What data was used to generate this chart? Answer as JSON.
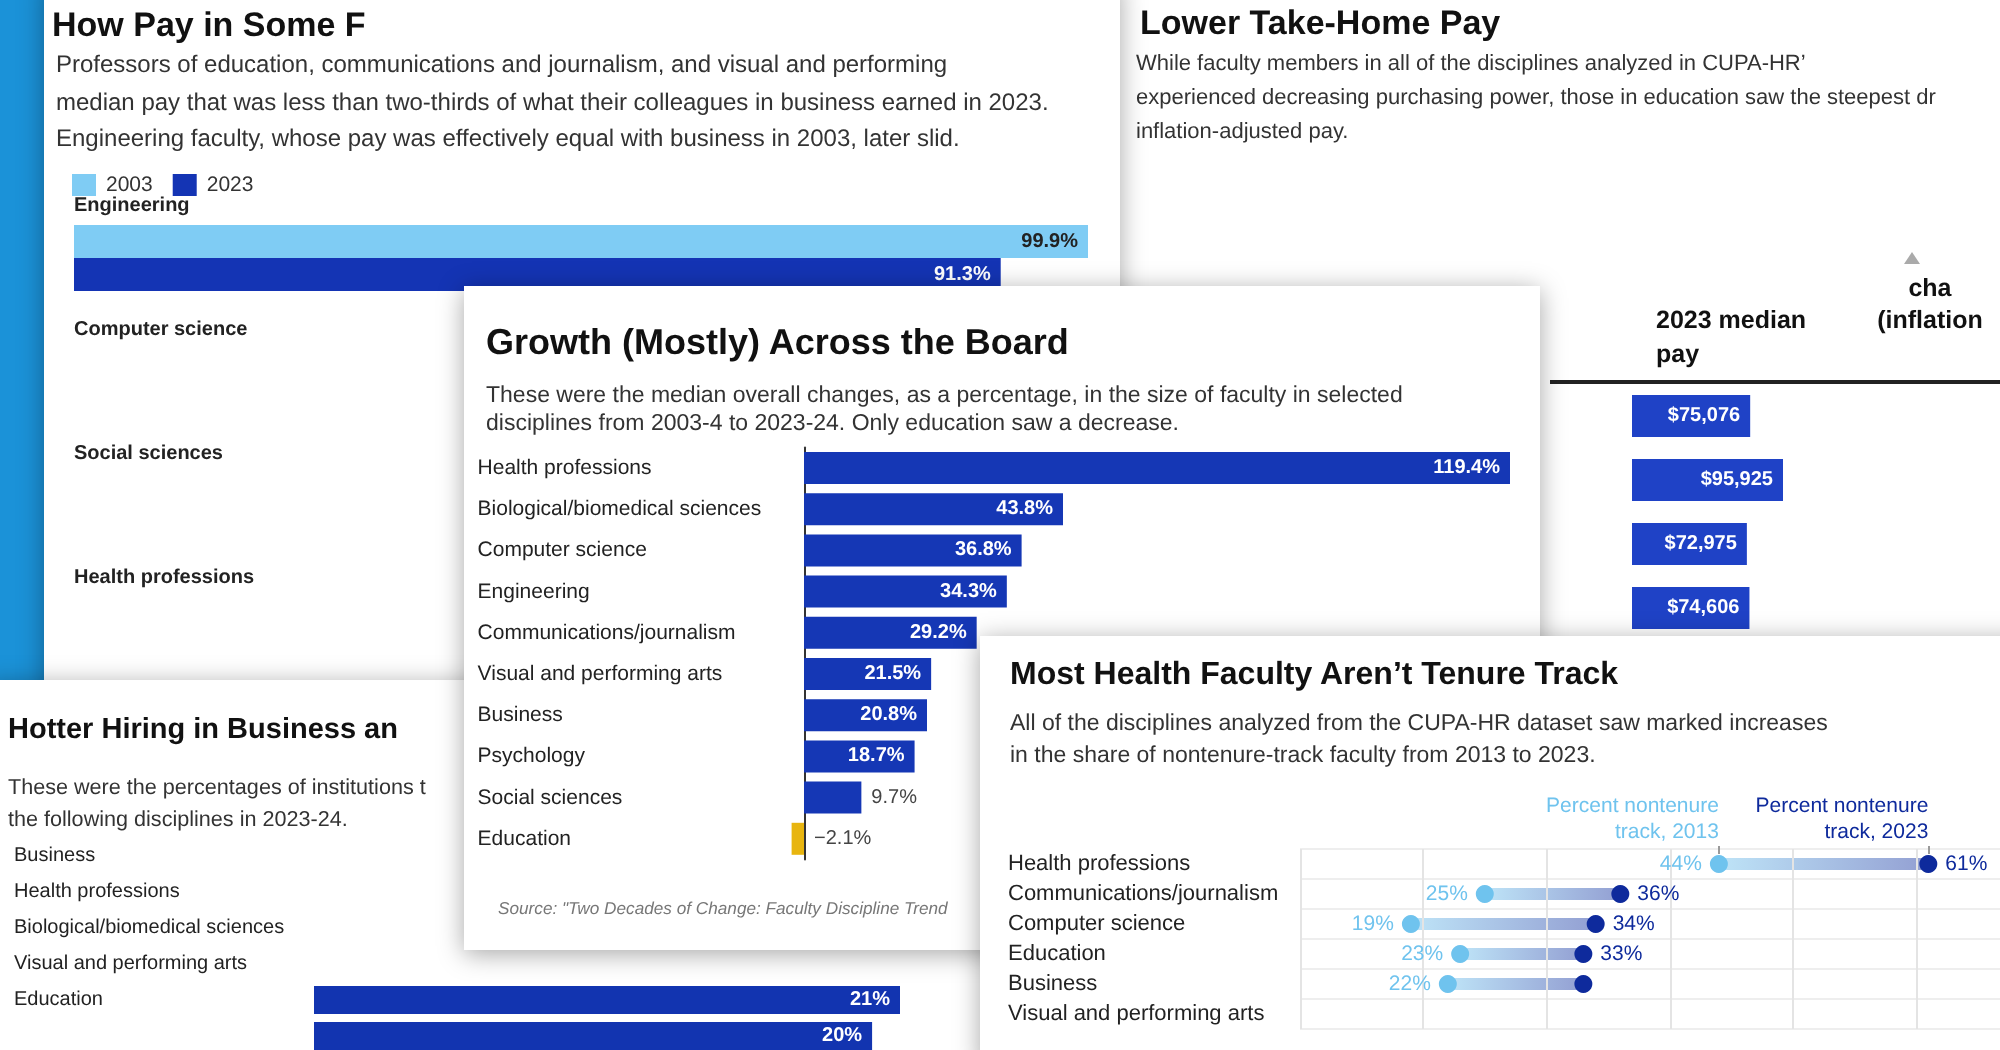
{
  "chart_data": [
    {
      "type": "bar",
      "orientation": "horizontal",
      "title": "How Pay in Some F",
      "subtitle": "Professors of education, communications and journalism, and visual and performing\nmedian pay that was less than two-thirds of what their colleagues in business earned in 2023.\nEngineering faculty, whose pay was effectively equal with business in 2003, later slid.",
      "legend": "top left",
      "categories": [
        "Engineering",
        "Computer science",
        "Social sciences",
        "Health professions"
      ],
      "series": [
        {
          "name": "2003",
          "color": "#7fccf4",
          "values": [
            99.9,
            null,
            null,
            null
          ],
          "value_labels": [
            "99.9%",
            null,
            null,
            null
          ]
        },
        {
          "name": "2023",
          "color": "#1434b4",
          "values": [
            91.3,
            null,
            null,
            null
          ],
          "value_labels": [
            "91.3%",
            null,
            null,
            null
          ]
        }
      ]
    },
    {
      "type": "bar",
      "orientation": "horizontal",
      "title": "Lower Take-Home Pay",
      "subtitle": "While faculty members in all of the disciplines analyzed in CUPA-HR’\nexperienced decreasing purchasing power, those in education saw the steepest dr\ninflation-adjusted pay.",
      "xlabel": "2023 median pay",
      "annotations": [
        "cha\n(inflation"
      ],
      "categories": [
        null,
        null,
        null,
        null
      ],
      "values": [
        75076,
        95925,
        72975,
        74606
      ],
      "value_labels": [
        "$75,076",
        "$95,925",
        "$72,975",
        "$74,606"
      ],
      "color": "#1f42c6"
    },
    {
      "type": "bar",
      "orientation": "horizontal",
      "title": "Growth (Mostly) Across the Board",
      "subtitle": "These were the median overall changes, as a percentage, in the size of faculty in selected\ndisciplines from 2003-4 to 2023-24. Only education saw a decrease.",
      "annotations": [
        "Source: \"Two Decades of Change: Faculty Discipline Trend"
      ],
      "categories": [
        "Health professions",
        "Biological/biomedical sciences",
        "Computer science",
        "Engineering",
        "Communications/journalism",
        "Visual and performing arts",
        "Business",
        "Psychology",
        "Social sciences",
        "Education"
      ],
      "values": [
        119.4,
        43.8,
        36.8,
        34.3,
        29.2,
        21.5,
        20.8,
        18.7,
        9.7,
        -2.1
      ],
      "value_labels": [
        "119.4%",
        "43.8%",
        "36.8%",
        "34.3%",
        "29.2%",
        "21.5%",
        "20.8%",
        "18.7%",
        "9.7%",
        "−2.1%"
      ],
      "colors": [
        "#1537b5",
        "#1537b5",
        "#1537b5",
        "#1537b5",
        "#1537b5",
        "#1537b5",
        "#1537b5",
        "#1537b5",
        "#1537b5",
        "#e8b50f"
      ]
    },
    {
      "type": "bar",
      "orientation": "horizontal",
      "title": "Hotter Hiring in Business an",
      "subtitle": "These were the percentages of institutions t\nthe following disciplines in 2023-24.",
      "categories": [
        "Business",
        "Health professions",
        "Biological/biomedical sciences",
        "Visual and performing arts",
        "Education",
        null
      ],
      "values": [
        null,
        null,
        null,
        null,
        21,
        20
      ],
      "value_labels": [
        null,
        null,
        null,
        null,
        "21%",
        "20%"
      ],
      "color": "#1234b0"
    },
    {
      "type": "scatter",
      "orientation": "horizontal",
      "title": "Most Health Faculty Aren’t Tenure Track",
      "subtitle": "All of the disciplines analyzed from the CUPA-HR dataset saw marked increases\nin the share of nontenure-track faculty from 2013 to 2023.",
      "categories": [
        "Health professions",
        "Communications/journalism",
        "Computer science",
        "Education",
        "Business",
        "Visual and performing arts"
      ],
      "series": [
        {
          "name": "Percent nontenure track, 2013",
          "color": "#6fc3ee",
          "values": [
            44,
            25,
            19,
            23,
            22,
            null
          ],
          "value_labels": [
            "44%",
            "25%",
            "19%",
            "23%",
            "22%",
            null
          ]
        },
        {
          "name": "Percent nontenure track, 2023",
          "color": "#0e2a9c",
          "values": [
            61,
            36,
            34,
            33,
            33,
            null
          ],
          "value_labels": [
            "61%",
            "36%",
            "34%",
            "33%",
            null,
            null
          ]
        }
      ],
      "xlim": [
        10,
        70
      ],
      "xticks": [
        {
          "value": 10,
          "label": null
        },
        {
          "value": 20,
          "label": null
        },
        {
          "value": 30,
          "label": null
        },
        {
          "value": 40,
          "label": null
        },
        {
          "value": 50,
          "label": null
        },
        {
          "value": 60,
          "label": null
        },
        {
          "value": 70,
          "label": null
        }
      ],
      "tick_labels": "y",
      "grid": true,
      "marker": "circle"
    }
  ]
}
